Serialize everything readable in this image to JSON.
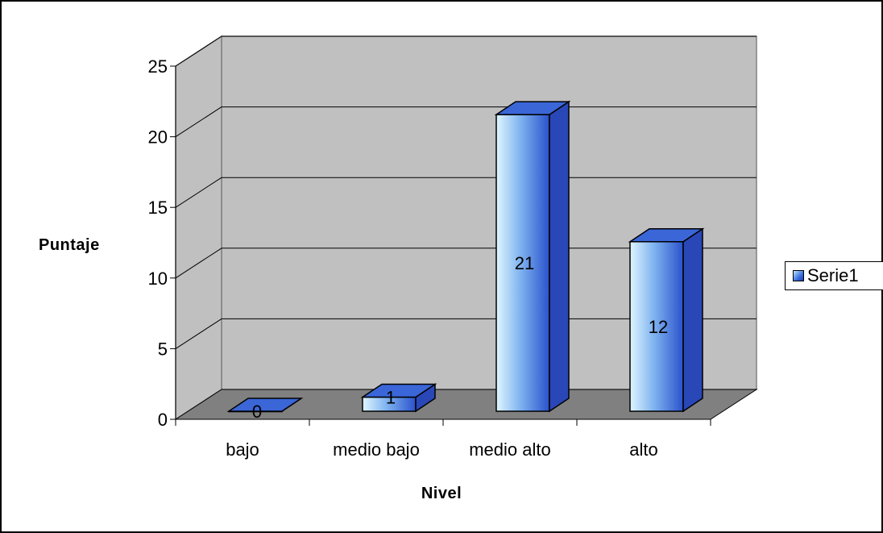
{
  "chart_data": {
    "type": "bar",
    "categories": [
      "bajo",
      "medio bajo",
      "medio alto",
      "alto"
    ],
    "series": [
      {
        "name": "Serie1",
        "values": [
          0,
          1,
          21,
          12
        ]
      }
    ],
    "data_labels": [
      "0",
      "1",
      "21",
      "12"
    ],
    "xlabel": "Nivel",
    "ylabel": "Puntaje",
    "ylim": [
      0,
      25
    ],
    "yticks": [
      "0",
      "5",
      "10",
      "15",
      "20",
      "25"
    ],
    "grid": true,
    "legend": "right",
    "style": "3d-column",
    "colors": {
      "bar_light": "#dff6ff",
      "bar_dark": "#2a52cc",
      "bar_top": "#3a66d8",
      "bar_side": "#2a47b8",
      "back_wall": "#c0c0c0",
      "floor": "#808080"
    }
  }
}
